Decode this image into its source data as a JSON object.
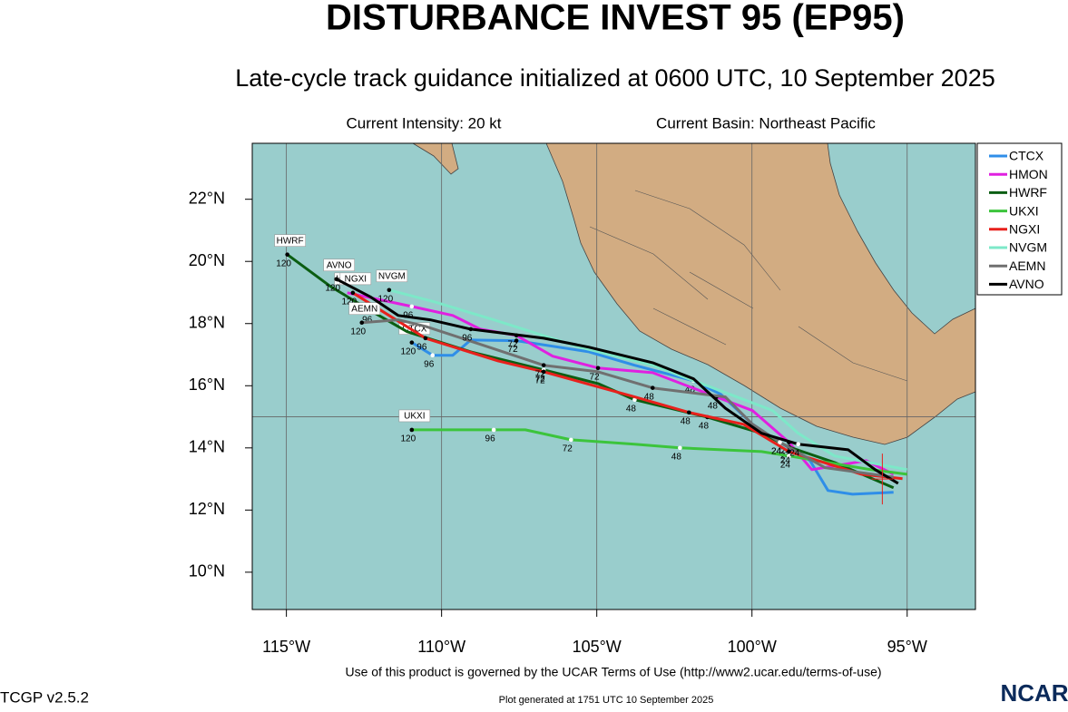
{
  "chart_data": {
    "type": "track",
    "title": "DISTURBANCE INVEST 95 (EP95)",
    "subtitle": "Late-cycle track guidance initialized at 0600 UTC, 10 September 2025",
    "intensity": "Current Intensity: 20 kt",
    "basin": "Current Basin: Northeast Pacific",
    "xlim": [
      -116.1,
      -92.8
    ],
    "ylim": [
      8.8,
      23.8
    ],
    "xticks": [
      {
        "value": -115,
        "label": "115°W"
      },
      {
        "value": -110,
        "label": "110°W"
      },
      {
        "value": -105,
        "label": "105°W"
      },
      {
        "value": -100,
        "label": "100°W"
      },
      {
        "value": -95,
        "label": "95°W"
      }
    ],
    "yticks": [
      {
        "value": 10,
        "label": "10°N"
      },
      {
        "value": 12,
        "label": "12°N"
      },
      {
        "value": 14,
        "label": "14°N"
      },
      {
        "value": 16,
        "label": "16°N"
      },
      {
        "value": 18,
        "label": "18°N"
      },
      {
        "value": 20,
        "label": "20°N"
      },
      {
        "value": 22,
        "label": "22°N"
      }
    ],
    "ygrid": [
      15
    ],
    "current_position": [
      -95.8,
      13.0
    ],
    "series": [
      {
        "name": "CTCX",
        "color": "#2f8ee8",
        "x": [
          -110.96,
          -110.29,
          -109.64,
          -109.06,
          -107.59,
          -105.25,
          -103.78,
          -101.88,
          -101.0,
          -99.98,
          -99.1,
          -98.13,
          -97.55,
          -96.76,
          -95.44
        ],
        "values": [
          17.39,
          16.98,
          16.98,
          17.47,
          17.45,
          17.09,
          16.66,
          16.16,
          15.72,
          14.76,
          14.18,
          13.59,
          12.63,
          12.51,
          12.57
        ],
        "hour_labels": [
          "120",
          "96",
          null,
          null,
          "72",
          null,
          null,
          "48",
          null,
          null,
          "24",
          null,
          null,
          null,
          null
        ]
      },
      {
        "name": "HMON",
        "color": "#e020e0",
        "x": [
          -113.04,
          -110.96,
          -109.64,
          -108.76,
          -107.59,
          -106.42,
          -104.96,
          -103.2,
          -101.15,
          -99.98,
          -98.81,
          -98.07,
          -96.32,
          -95.44
        ],
        "values": [
          18.99,
          18.55,
          18.26,
          17.82,
          17.62,
          16.95,
          16.57,
          16.42,
          15.64,
          15.2,
          14.18,
          13.3,
          13.59,
          13.15
        ],
        "hour_labels": [
          null,
          "96",
          null,
          null,
          "72",
          null,
          "72",
          null,
          "48",
          null,
          "24",
          null,
          null,
          null
        ]
      },
      {
        "name": "HWRF",
        "color": "#0b5e12",
        "x": [
          -114.97,
          -113.59,
          -112.28,
          -111.11,
          -109.06,
          -106.71,
          -104.96,
          -103.78,
          -101.44,
          -99.69,
          -98.81,
          -97.34,
          -95.44
        ],
        "values": [
          20.22,
          19.2,
          18.41,
          17.74,
          17.09,
          16.51,
          16.07,
          15.55,
          14.99,
          14.47,
          14.03,
          13.53,
          12.72
        ],
        "hour_labels": [
          "120",
          null,
          "96",
          null,
          null,
          "72",
          null,
          "48",
          "48",
          null,
          "24",
          null,
          null
        ]
      },
      {
        "name": "UKXI",
        "color": "#3cc43c",
        "x": [
          -110.96,
          -108.32,
          -107.3,
          -105.83,
          -103.78,
          -102.32,
          -99.69,
          -98.81,
          -96.17,
          -95.0
        ],
        "values": [
          14.58,
          14.58,
          14.58,
          14.26,
          14.12,
          14.0,
          13.88,
          13.74,
          13.3,
          13.15
        ],
        "hour_labels": [
          "120",
          "96",
          null,
          "72",
          null,
          "48",
          null,
          "24",
          null,
          null
        ]
      },
      {
        "name": "NGXI",
        "color": "#e8201c",
        "x": [
          -112.86,
          -111.69,
          -110.52,
          -108.18,
          -106.71,
          -103.78,
          -102.03,
          -100.27,
          -98.81,
          -96.47,
          -95.15
        ],
        "values": [
          18.99,
          18.26,
          17.53,
          16.8,
          16.45,
          15.64,
          15.14,
          14.76,
          13.88,
          13.15,
          13.01
        ],
        "hour_labels": [
          "120",
          null,
          "96",
          null,
          "72",
          null,
          "48",
          null,
          "24",
          null,
          null
        ]
      },
      {
        "name": "NVGM",
        "color": "#7de8c8",
        "x": [
          -111.69,
          -110.23,
          -108.32,
          -105.54,
          -103.2,
          -100.86,
          -99.33,
          -98.51,
          -97.34,
          -95.0
        ],
        "values": [
          19.08,
          18.7,
          18.12,
          17.24,
          16.66,
          15.78,
          15.2,
          14.47,
          13.74,
          13.3
        ],
        "hour_labels": [
          "120",
          null,
          null,
          null,
          null,
          null,
          null,
          null,
          null,
          null
        ]
      },
      {
        "name": "AEMN",
        "color": "#707070",
        "x": [
          -112.57,
          -111.4,
          -110.52,
          -108.47,
          -106.71,
          -104.96,
          -103.2,
          -100.86,
          -99.98,
          -99.1,
          -97.64,
          -95.44
        ],
        "values": [
          18.03,
          18.12,
          17.91,
          17.24,
          16.66,
          16.45,
          15.93,
          15.64,
          14.76,
          14.18,
          13.36,
          13.06
        ],
        "hour_labels": [
          "120",
          null,
          null,
          null,
          "72",
          null,
          "48",
          null,
          null,
          "24",
          null,
          null
        ]
      },
      {
        "name": "AVNO",
        "color": "#000000",
        "x": [
          -113.39,
          -112.28,
          -111.4,
          -110.37,
          -109.06,
          -106.71,
          -105.25,
          -103.2,
          -101.88,
          -100.86,
          -99.69,
          -98.51,
          -96.9,
          -96.03,
          -95.29
        ],
        "values": [
          19.43,
          18.85,
          18.26,
          18.12,
          17.82,
          17.53,
          17.24,
          16.74,
          16.22,
          15.28,
          14.47,
          14.12,
          13.94,
          13.3,
          12.86
        ],
        "hour_labels": [
          "120",
          null,
          null,
          null,
          "96",
          null,
          null,
          null,
          null,
          null,
          null,
          "24",
          null,
          null,
          null
        ]
      }
    ]
  },
  "footer": {
    "terms": "Use of this product is governed by the UCAR Terms of Use (http://www2.ucar.edu/terms-of-use)",
    "version": "TCGP v2.5.2",
    "generated": "Plot generated at 1751 UTC   10 September 2025",
    "logo": "NCAR"
  }
}
